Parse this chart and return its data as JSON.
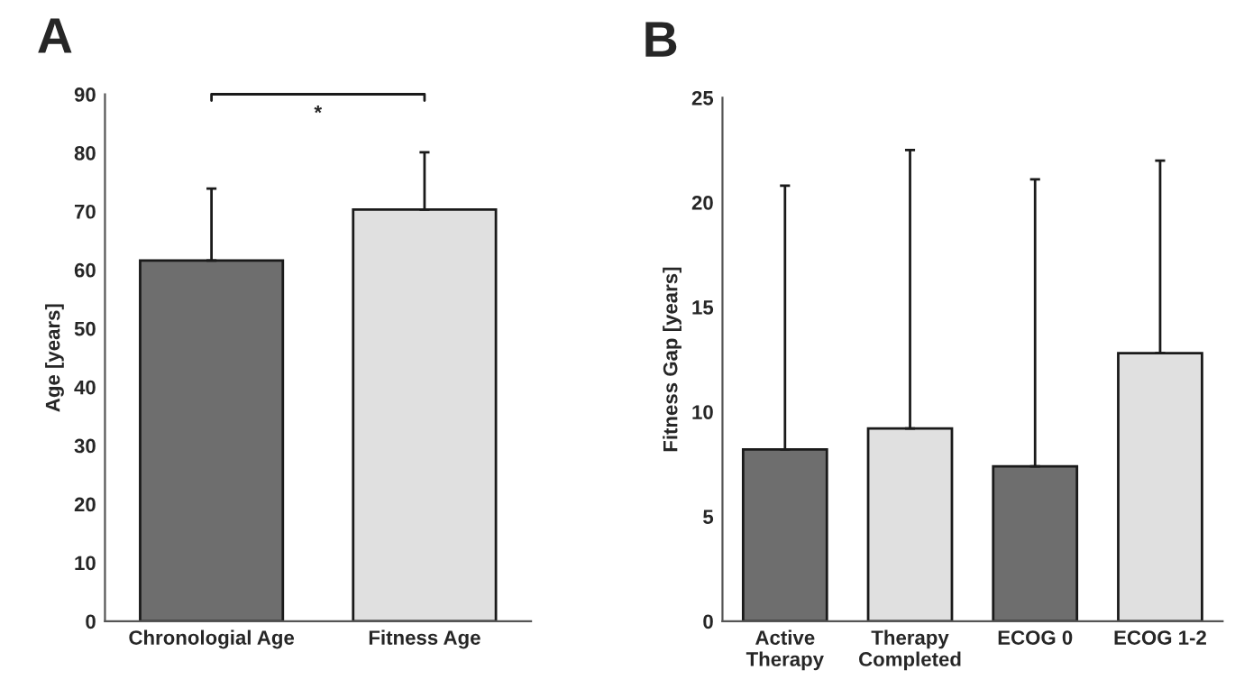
{
  "chart_data": [
    {
      "type": "bar",
      "title": "A",
      "ylabel": "Age [years]",
      "categories": [
        "Chronologial Age",
        "Fitness Age"
      ],
      "values": [
        61.6,
        70.3
      ],
      "colors": [
        "#6e6e6e",
        "#e0e0e0"
      ],
      "errors": [
        [
          61.6,
          73.9
        ],
        [
          70.3,
          80.1
        ]
      ],
      "ylim": [
        0,
        90
      ],
      "yticks": [
        0,
        10,
        20,
        30,
        40,
        50,
        60,
        70,
        80,
        90
      ],
      "grid": false,
      "legend": false,
      "annotations": [
        "*"
      ]
    },
    {
      "type": "bar",
      "title": "B",
      "ylabel": "Fitness Gap [years]",
      "categories": [
        "Active\nTherapy",
        "Therapy\nCompleted",
        "ECOG 0",
        "ECOG 1-2"
      ],
      "values": [
        8.2,
        9.2,
        7.4,
        12.8
      ],
      "colors": [
        "#6e6e6e",
        "#e0e0e0",
        "#6e6e6e",
        "#e0e0e0"
      ],
      "errors": [
        [
          8.2,
          20.8
        ],
        [
          9.2,
          22.5
        ],
        [
          7.4,
          21.1
        ],
        [
          12.8,
          22.0
        ]
      ],
      "ylim": [
        0,
        25
      ],
      "yticks": [
        0,
        5,
        10,
        15,
        20,
        25
      ],
      "grid": false,
      "legend": false
    }
  ]
}
